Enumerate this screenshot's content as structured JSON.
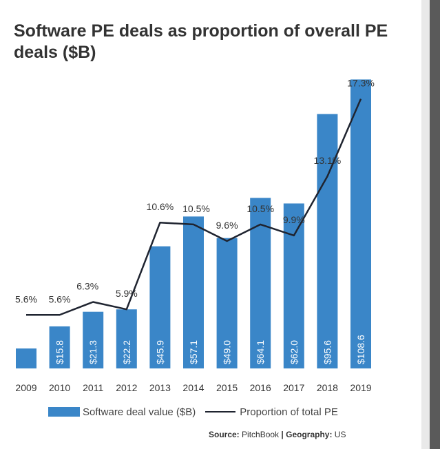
{
  "title": "Software PE deals as proportion of overall PE deals ($B)",
  "legend": {
    "bar_label": "Software deal value ($B)",
    "line_label": "Proportion of total PE"
  },
  "source": {
    "source_label": "Source:",
    "source_value": "PitchBook",
    "separator": "|",
    "geo_label": "Geography:",
    "geo_value": "US"
  },
  "colors": {
    "bar": "#3a86c8",
    "line": "#1f2430",
    "text": "#333333"
  },
  "chart_data": {
    "type": "bar",
    "title": "Software PE deals as proportion of overall PE deals ($B)",
    "categories": [
      "2009",
      "2010",
      "2011",
      "2012",
      "2013",
      "2014",
      "2015",
      "2016",
      "2017",
      "2018",
      "2019"
    ],
    "series": [
      {
        "name": "Software deal value ($B)",
        "type": "bar",
        "values": [
          7.5,
          15.8,
          21.3,
          22.2,
          45.9,
          57.1,
          49.0,
          64.1,
          62.0,
          95.6,
          108.6
        ],
        "labels": [
          "",
          "$15.8",
          "$21.3",
          "$22.2",
          "$45.9",
          "$57.1",
          "$49.0",
          "$64.1",
          "$62.0",
          "$95.6",
          "$108.6"
        ]
      },
      {
        "name": "Proportion of total PE",
        "type": "line",
        "values": [
          5.6,
          5.6,
          6.3,
          5.9,
          10.6,
          10.5,
          9.6,
          10.5,
          9.9,
          13.1,
          17.3
        ],
        "labels": [
          "5.6%",
          "5.6%",
          "6.3%",
          "5.9%",
          "10.6%",
          "10.5%",
          "9.6%",
          "10.5%",
          "9.9%",
          "13.1%",
          "17.3%"
        ]
      }
    ],
    "bar_ylim": [
      0,
      110
    ],
    "line_ylim": [
      2.7,
      19.0
    ],
    "grid": false,
    "legend_position": "bottom"
  }
}
